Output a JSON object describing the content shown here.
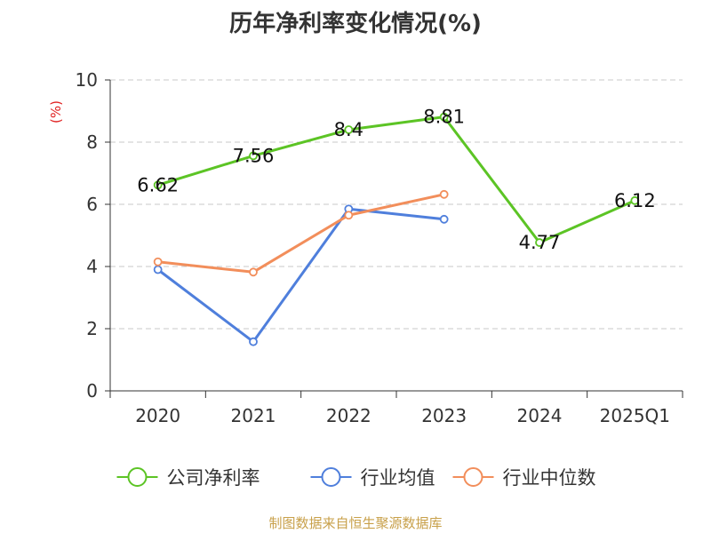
{
  "chart_data": {
    "type": "line",
    "title": "历年净利率变化情况(%)",
    "ylabel": "(%)",
    "xlabel": "",
    "categories": [
      "2020",
      "2021",
      "2022",
      "2023",
      "2024",
      "2025Q1"
    ],
    "ylim": [
      0,
      10
    ],
    "yticks": [
      0,
      2,
      4,
      6,
      8,
      10
    ],
    "grid": true,
    "legend_position": "bottom",
    "series": [
      {
        "name": "公司净利率",
        "color": "#5cc425",
        "values": [
          6.62,
          7.56,
          8.4,
          8.81,
          4.77,
          6.12
        ],
        "labels": [
          "6.62",
          "7.56",
          "8.4",
          "8.81",
          "4.77",
          "6.12"
        ]
      },
      {
        "name": "行业均值",
        "color": "#4f7fdc",
        "values": [
          3.9,
          1.58,
          5.85,
          5.52,
          null,
          null
        ]
      },
      {
        "name": "行业中位数",
        "color": "#f28e5b",
        "values": [
          4.15,
          3.82,
          5.65,
          6.32,
          null,
          null
        ]
      }
    ]
  },
  "footer": "制图数据来自恒生聚源数据库"
}
